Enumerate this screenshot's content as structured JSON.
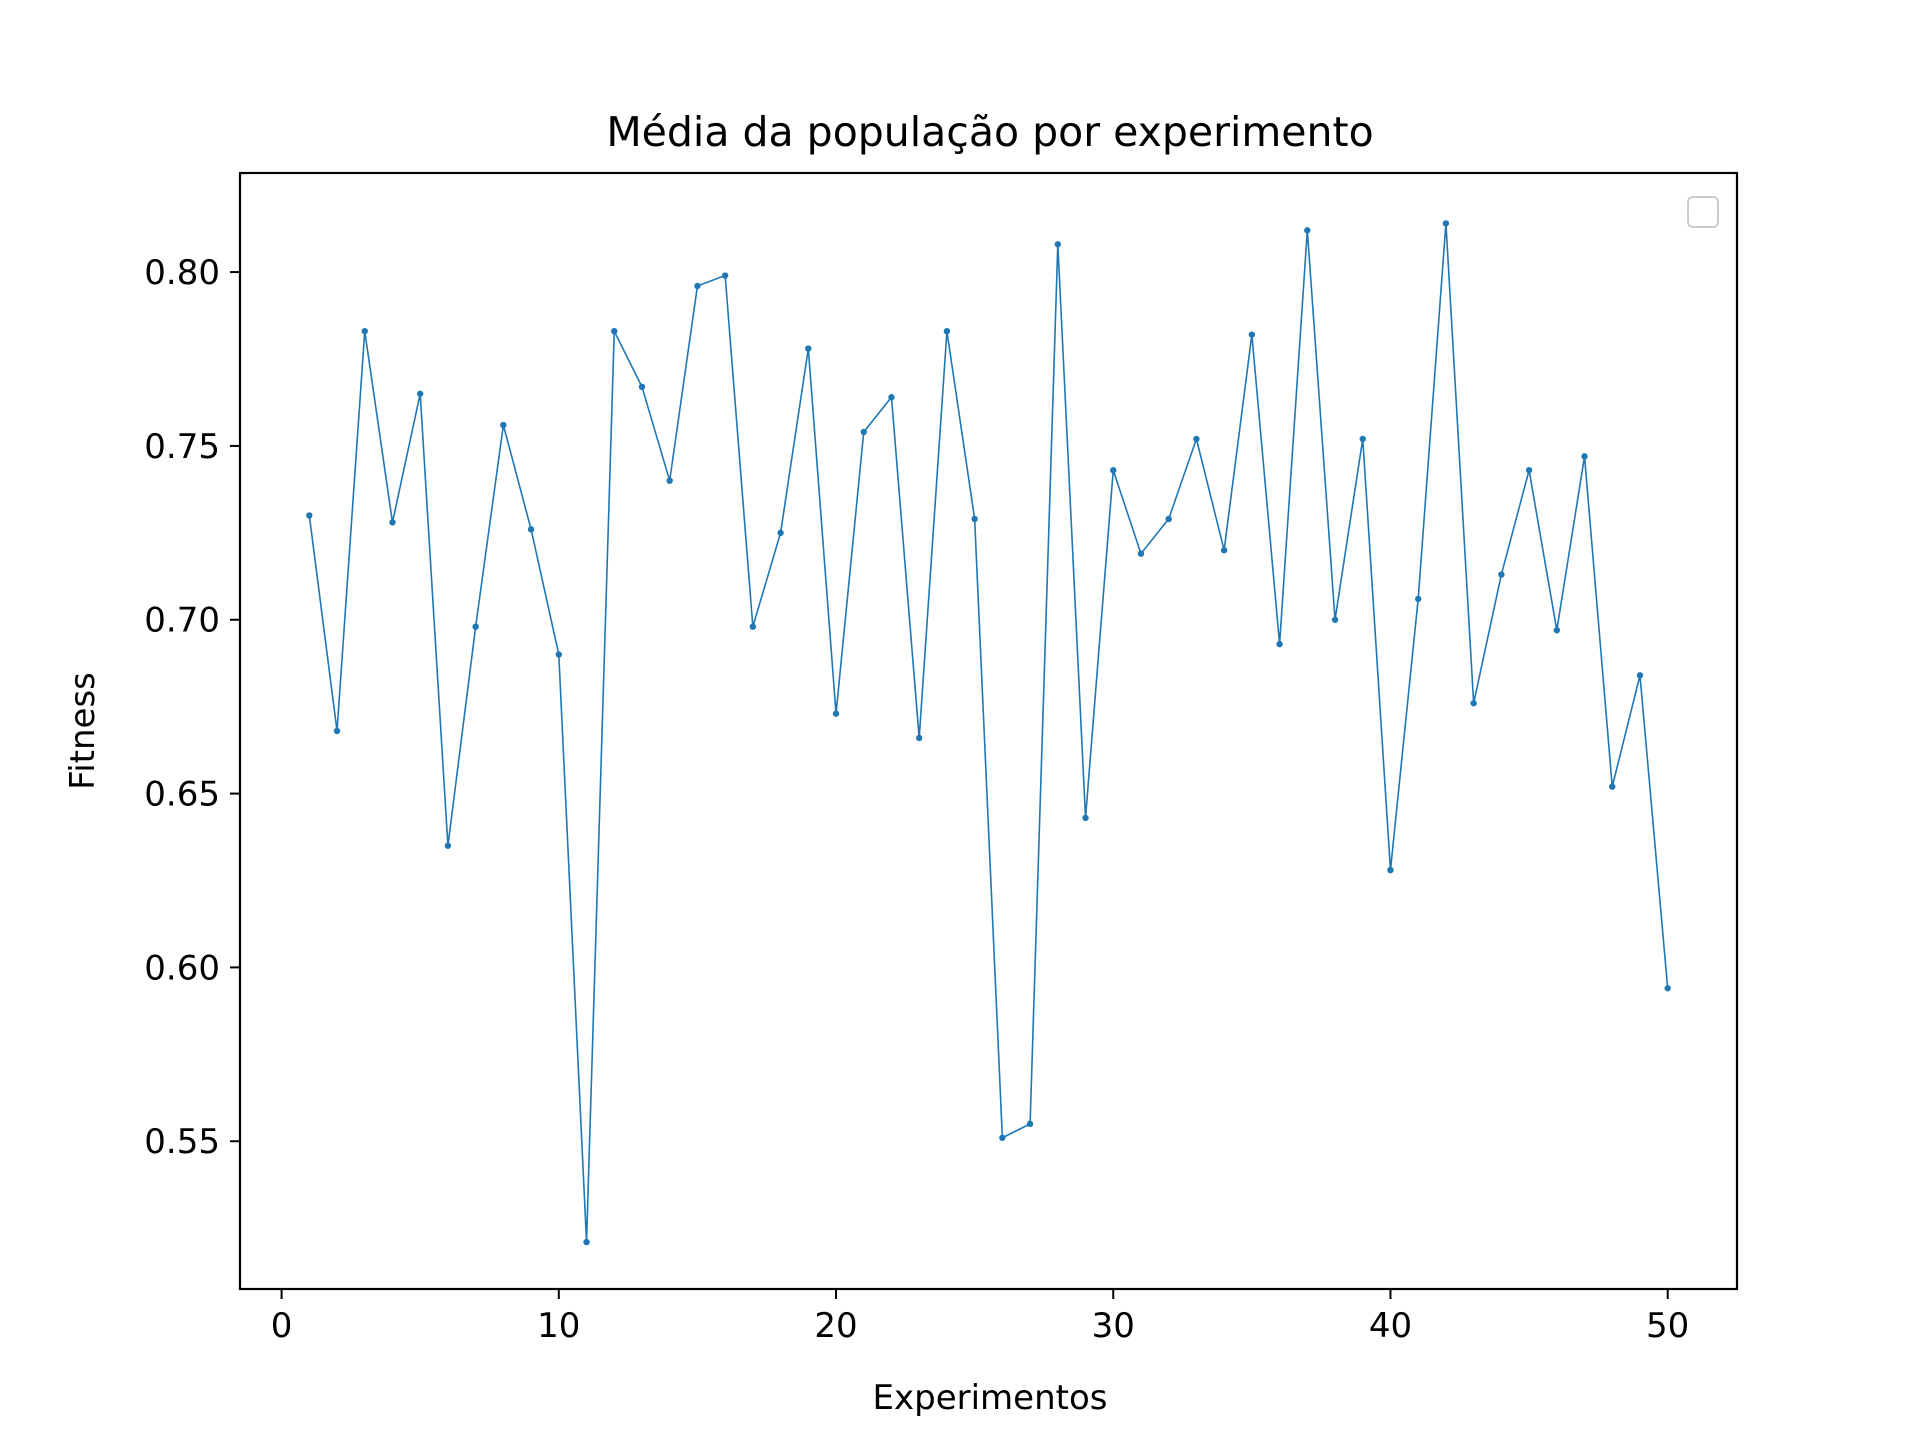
{
  "chart_data": {
    "type": "line",
    "title": "Média da população por experimento",
    "xlabel": "Experimentos",
    "ylabel": "Fitness",
    "xlim": [
      -1.5,
      52.5
    ],
    "ylim": [
      0.5075,
      0.8285
    ],
    "x_ticks": [
      0,
      10,
      20,
      30,
      40,
      50
    ],
    "x_tick_labels": [
      "0",
      "10",
      "20",
      "30",
      "40",
      "50"
    ],
    "y_ticks": [
      0.55,
      0.6,
      0.65,
      0.7,
      0.75,
      0.8
    ],
    "y_tick_labels": [
      "0.55",
      "0.60",
      "0.65",
      "0.70",
      "0.75",
      "0.80"
    ],
    "grid": false,
    "legend": {
      "placement": "top-right",
      "entries": []
    },
    "colors": {
      "series": "#1f77b4",
      "axes": "#000000",
      "background": "#ffffff"
    },
    "series": [
      {
        "x": [
          1,
          2,
          3,
          4,
          5,
          6,
          7,
          8,
          9,
          10,
          11,
          12,
          13,
          14,
          15,
          16,
          17,
          18,
          19,
          20,
          21,
          22,
          23,
          24,
          25,
          26,
          27,
          28,
          29,
          30,
          31,
          32,
          33,
          34,
          35,
          36,
          37,
          38,
          39,
          40,
          41,
          42,
          43,
          44,
          45,
          46,
          47,
          48,
          49,
          50
        ],
        "values": [
          0.73,
          0.668,
          0.783,
          0.728,
          0.765,
          0.635,
          0.698,
          0.756,
          0.726,
          0.69,
          0.521,
          0.783,
          0.767,
          0.74,
          0.796,
          0.799,
          0.698,
          0.725,
          0.778,
          0.673,
          0.754,
          0.764,
          0.666,
          0.783,
          0.729,
          0.551,
          0.555,
          0.808,
          0.643,
          0.743,
          0.719,
          0.729,
          0.752,
          0.72,
          0.782,
          0.693,
          0.812,
          0.7,
          0.752,
          0.628,
          0.706,
          0.814,
          0.676,
          0.713,
          0.743,
          0.697,
          0.747,
          0.652,
          0.684,
          0.594
        ]
      }
    ]
  }
}
